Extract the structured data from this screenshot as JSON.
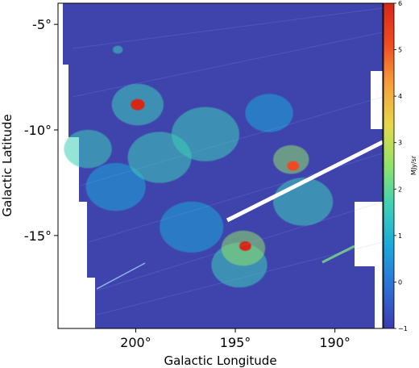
{
  "chart_data": {
    "type": "heatmap",
    "xlabel": "Galactic Longitude",
    "ylabel": "Galactic Latitude",
    "xlim": [
      203.9,
      187.6
    ],
    "ylim": [
      -19.4,
      -4.0
    ],
    "x_ticks": [
      {
        "value": 200,
        "label": "200°"
      },
      {
        "value": 195,
        "label": "195°"
      },
      {
        "value": 190,
        "label": "190°"
      }
    ],
    "y_ticks": [
      {
        "value": -5,
        "label": "-5°"
      },
      {
        "value": -10,
        "label": "-10°"
      },
      {
        "value": -15,
        "label": "-15°"
      }
    ],
    "colorbar": {
      "label": "MJy/sr",
      "range": [
        -1,
        6
      ],
      "ticks": [
        -1,
        0,
        1,
        2,
        3,
        4,
        5,
        6
      ],
      "colormap": "rainbow",
      "stops": [
        "#3b3ab0",
        "#2f6fd8",
        "#1aa7dc",
        "#3ccfb8",
        "#8fe36b",
        "#e6d84a",
        "#f7a03a",
        "#f04a23",
        "#d62718"
      ]
    },
    "background_value": -0.2,
    "emission_features": [
      {
        "l": 199.9,
        "b": -8.8,
        "value": 6.0,
        "width": 0.35
      },
      {
        "l": 199.9,
        "b": -8.8,
        "value": 2.0,
        "width": 1.3
      },
      {
        "l": 194.5,
        "b": -15.5,
        "value": 6.0,
        "width": 0.3
      },
      {
        "l": 194.6,
        "b": -15.6,
        "value": 2.2,
        "width": 1.1
      },
      {
        "l": 192.1,
        "b": -11.7,
        "value": 5.5,
        "width": 0.3
      },
      {
        "l": 192.2,
        "b": -11.4,
        "value": 2.8,
        "width": 0.9
      },
      {
        "l": 198.8,
        "b": -11.3,
        "value": 1.8,
        "width": 1.6
      },
      {
        "l": 202.4,
        "b": -10.9,
        "value": 1.4,
        "width": 1.2
      },
      {
        "l": 196.5,
        "b": -10.2,
        "value": 1.2,
        "width": 1.7
      },
      {
        "l": 191.6,
        "b": -13.4,
        "value": 1.3,
        "width": 1.5
      },
      {
        "l": 194.8,
        "b": -16.4,
        "value": 1.6,
        "width": 1.4
      },
      {
        "l": 197.2,
        "b": -14.6,
        "value": 1.1,
        "width": 1.6
      },
      {
        "l": 201.0,
        "b": -12.7,
        "value": 1.0,
        "width": 1.5
      },
      {
        "l": 193.3,
        "b": -9.2,
        "value": 0.8,
        "width": 1.2
      },
      {
        "l": 200.9,
        "b": -6.2,
        "value": 1.6,
        "width": 0.25
      }
    ]
  }
}
